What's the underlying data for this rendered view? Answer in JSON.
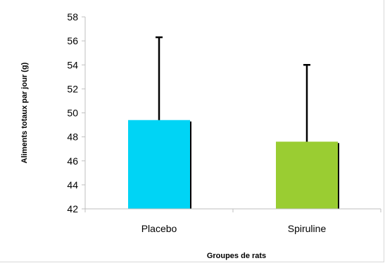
{
  "chart_data": {
    "type": "bar",
    "title": "",
    "xlabel": "Groupes de rats",
    "ylabel": "Aliments totaux par jour (g)",
    "categories": [
      "Placebo",
      "Spiruline"
    ],
    "series": [
      {
        "values": [
          49.4,
          47.6
        ],
        "error_upper": [
          56.3,
          54.0
        ],
        "colors": [
          "#00d4f5",
          "#9acd32"
        ]
      }
    ],
    "ylim": [
      42,
      58
    ],
    "yticks": [
      "42",
      "44",
      "46",
      "48",
      "50",
      "52",
      "54",
      "56",
      "58"
    ],
    "grid": false,
    "legend": "none"
  }
}
